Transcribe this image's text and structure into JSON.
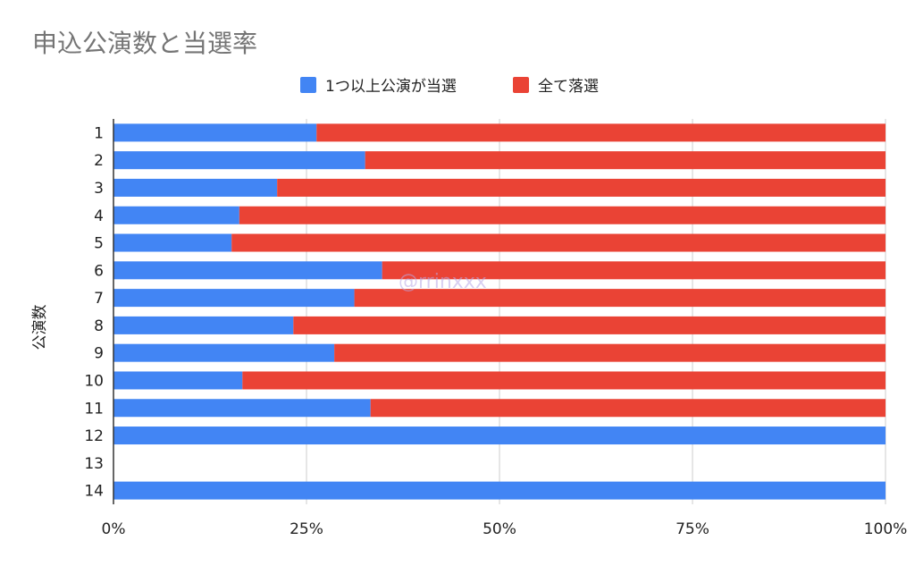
{
  "chart_data": {
    "type": "bar",
    "orientation": "horizontal",
    "stacked": "percent",
    "title": "申込公演数と当選率",
    "ylabel": "公演数",
    "xlabel": "",
    "categories": [
      "1",
      "2",
      "3",
      "4",
      "5",
      "6",
      "7",
      "8",
      "9",
      "10",
      "11",
      "12",
      "13",
      "14"
    ],
    "series": [
      {
        "name": "1つ以上公演が当選",
        "color": "#4285F4",
        "values": [
          26.3,
          32.6,
          21.2,
          16.3,
          15.3,
          34.8,
          31.2,
          23.3,
          28.6,
          16.7,
          33.3,
          100,
          0,
          100
        ]
      },
      {
        "name": "全て落選",
        "color": "#EA4335",
        "values": [
          73.7,
          67.4,
          78.8,
          83.7,
          84.7,
          65.2,
          68.8,
          76.7,
          71.4,
          83.3,
          66.7,
          0,
          0,
          0
        ]
      }
    ],
    "x_ticks": [
      "0%",
      "25%",
      "50%",
      "75%",
      "100%"
    ],
    "xlim": [
      0,
      100
    ],
    "grid": true,
    "legend_position": "top"
  },
  "watermark": "@rrinxxx"
}
